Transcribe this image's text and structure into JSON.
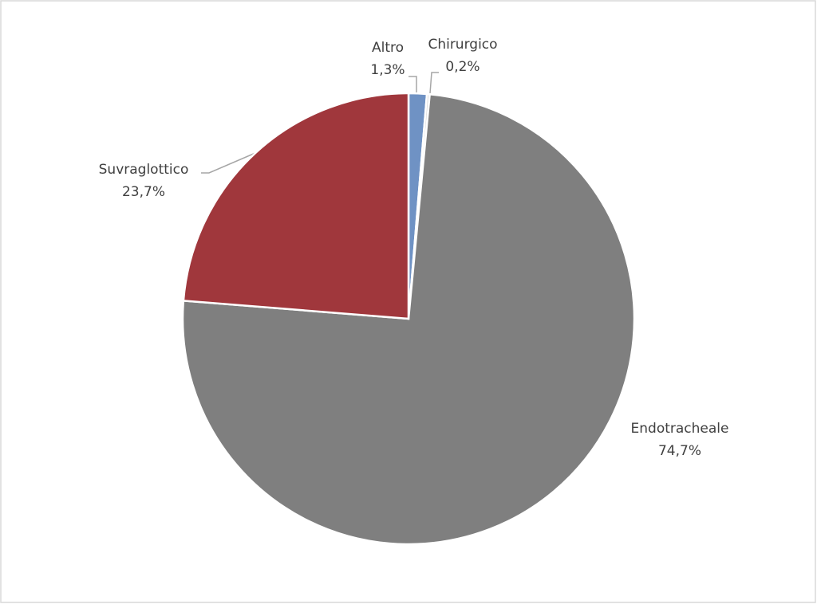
{
  "chart_data": {
    "type": "pie",
    "categories": [
      "Altro",
      "Chirurgico",
      "Endotracheale",
      "Suvraglottico"
    ],
    "values": [
      1.3,
      0.2,
      74.7,
      23.7
    ],
    "value_labels": [
      "1,3%",
      "0,2%",
      "74,7%",
      "23,7%"
    ],
    "colors": [
      "#6f92c4",
      "#d9d9d9",
      "#7f7f7f",
      "#a0373c"
    ]
  }
}
